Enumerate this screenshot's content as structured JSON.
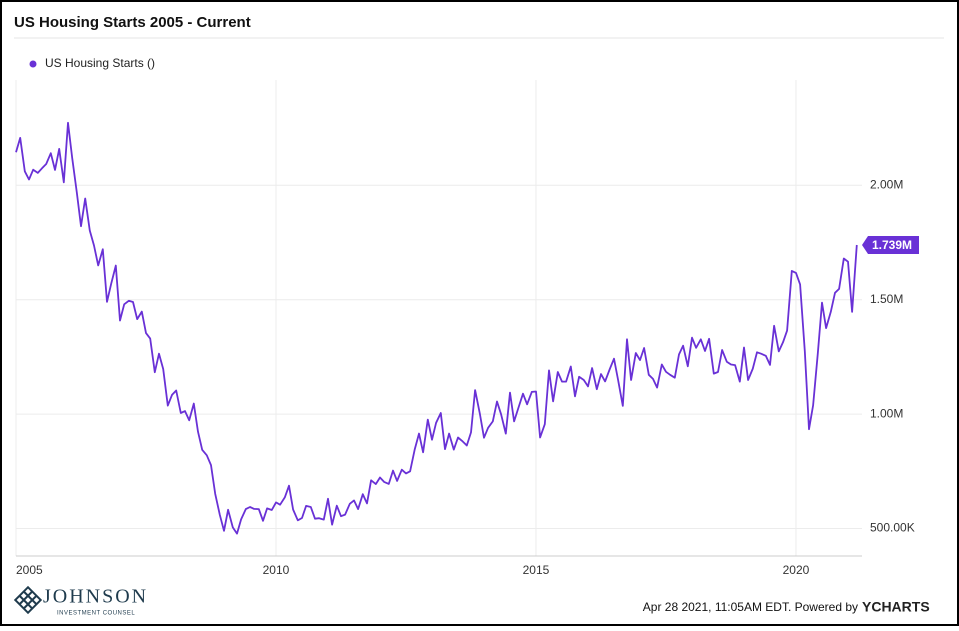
{
  "chart_data": {
    "type": "line",
    "title": "US Housing Starts 2005 - Current",
    "series": [
      {
        "name": "US Housing Starts ()",
        "color": "#6931d6",
        "values": [
          2144000,
          2207000,
          2061000,
          2025000,
          2068000,
          2054000,
          2074000,
          2093000,
          2140000,
          2067000,
          2159000,
          2013000,
          2273000,
          2119000,
          1969000,
          1821000,
          1942000,
          1802000,
          1737000,
          1650000,
          1720000,
          1491000,
          1570000,
          1649000,
          1409000,
          1480000,
          1495000,
          1490000,
          1415000,
          1448000,
          1354000,
          1330000,
          1183000,
          1264000,
          1197000,
          1037000,
          1084000,
          1103000,
          1005000,
          1013000,
          973000,
          1046000,
          923000,
          844000,
          820000,
          777000,
          652000,
          560000,
          490000,
          582000,
          505000,
          478000,
          540000,
          585000,
          594000,
          586000,
          585000,
          534000,
          588000,
          581000,
          614000,
          604000,
          636000,
          687000,
          583000,
          536000,
          546000,
          599000,
          594000,
          543000,
          545000,
          539000,
          630000,
          517000,
          600000,
          554000,
          561000,
          608000,
          623000,
          585000,
          650000,
          610000,
          711000,
          694000,
          723000,
          704000,
          695000,
          753000,
          708000,
          757000,
          741000,
          750000,
          847000,
          915000,
          833000,
          976000,
          888000,
          962000,
          1005000,
          847000,
          915000,
          845000,
          898000,
          883000,
          863000,
          920000,
          1105000,
          1003000,
          897000,
          940000,
          968000,
          1055000,
          999000,
          915000,
          1094000,
          968000,
          1033000,
          1089000,
          1043000,
          1097000,
          1099000,
          898000,
          956000,
          1191000,
          1056000,
          1184000,
          1142000,
          1142000,
          1208000,
          1078000,
          1163000,
          1149000,
          1121000,
          1201000,
          1109000,
          1175000,
          1143000,
          1197000,
          1242000,
          1149000,
          1036000,
          1327000,
          1149000,
          1267000,
          1236000,
          1289000,
          1172000,
          1154000,
          1116000,
          1217000,
          1185000,
          1172000,
          1159000,
          1261000,
          1299000,
          1209000,
          1334000,
          1290000,
          1327000,
          1276000,
          1329000,
          1177000,
          1184000,
          1280000,
          1229000,
          1217000,
          1214000,
          1142000,
          1291000,
          1149000,
          1199000,
          1270000,
          1264000,
          1255000,
          1215000,
          1386000,
          1274000,
          1314000,
          1365000,
          1626000,
          1617000,
          1567000,
          1276000,
          934000,
          1038000,
          1265000,
          1487000,
          1376000,
          1447000,
          1530000,
          1547000,
          1680000,
          1666000,
          1447000,
          1739000
        ]
      }
    ],
    "x": [
      2005,
      2005.08,
      2005.17,
      2005.25,
      2005.33,
      2005.42,
      2005.5,
      2005.58,
      2005.67,
      2005.75,
      2005.83,
      2005.92,
      2006,
      2006.08,
      2006.17,
      2006.25,
      2006.33,
      2006.42,
      2006.5,
      2006.58,
      2006.67,
      2006.75,
      2006.83,
      2006.92,
      2007,
      2007.08,
      2007.17,
      2007.25,
      2007.33,
      2007.42,
      2007.5,
      2007.58,
      2007.67,
      2007.75,
      2007.83,
      2007.92,
      2008,
      2008.08,
      2008.17,
      2008.25,
      2008.33,
      2008.42,
      2008.5,
      2008.58,
      2008.67,
      2008.75,
      2008.83,
      2008.92,
      2009,
      2009.08,
      2009.17,
      2009.25,
      2009.33,
      2009.42,
      2009.5,
      2009.58,
      2009.67,
      2009.75,
      2009.83,
      2009.92,
      2010,
      2010.08,
      2010.17,
      2010.25,
      2010.33,
      2010.42,
      2010.5,
      2010.58,
      2010.67,
      2010.75,
      2010.83,
      2010.92,
      2011,
      2011.08,
      2011.17,
      2011.25,
      2011.33,
      2011.42,
      2011.5,
      2011.58,
      2011.67,
      2011.75,
      2011.83,
      2011.92,
      2012,
      2012.08,
      2012.17,
      2012.25,
      2012.33,
      2012.42,
      2012.5,
      2012.58,
      2012.67,
      2012.75,
      2012.83,
      2012.92,
      2013,
      2013.08,
      2013.17,
      2013.25,
      2013.33,
      2013.42,
      2013.5,
      2013.58,
      2013.67,
      2013.75,
      2013.83,
      2013.92,
      2014,
      2014.08,
      2014.17,
      2014.25,
      2014.33,
      2014.42,
      2014.5,
      2014.58,
      2014.67,
      2014.75,
      2014.83,
      2014.92,
      2015,
      2015.08,
      2015.17,
      2015.25,
      2015.33,
      2015.42,
      2015.5,
      2015.58,
      2015.67,
      2015.75,
      2015.83,
      2015.92,
      2016,
      2016.08,
      2016.17,
      2016.25,
      2016.33,
      2016.42,
      2016.5,
      2016.58,
      2016.67,
      2016.75,
      2016.83,
      2016.92,
      2017,
      2017.08,
      2017.17,
      2017.25,
      2017.33,
      2017.42,
      2017.5,
      2017.58,
      2017.67,
      2017.75,
      2017.83,
      2017.92,
      2018,
      2018.08,
      2018.17,
      2018.25,
      2018.33,
      2018.42,
      2018.5,
      2018.58,
      2018.67,
      2018.75,
      2018.83,
      2018.92,
      2019,
      2019.08,
      2019.17,
      2019.25,
      2019.33,
      2019.42,
      2019.5,
      2019.58,
      2019.67,
      2019.75,
      2019.83,
      2019.92,
      2020,
      2020.08,
      2020.17,
      2020.25,
      2020.33,
      2020.42,
      2020.5,
      2020.58,
      2020.67,
      2020.75,
      2020.83,
      2020.92,
      2021,
      2021.08,
      2021.17
    ],
    "xlim": [
      2005,
      2021.27
    ],
    "xticks": [
      2005,
      2010,
      2015,
      2020
    ],
    "ylim": [
      380000,
      2460000
    ],
    "yticks": [
      {
        "value": 500000,
        "label": "500.00K"
      },
      {
        "value": 1000000,
        "label": "1.00M"
      },
      {
        "value": 1500000,
        "label": "1.50M"
      },
      {
        "value": 2000000,
        "label": "2.00M"
      }
    ],
    "grid": true,
    "legend": "top-left",
    "end_label": "1.739M"
  },
  "footer": {
    "logo_name": "JOHNSON",
    "logo_sub": "INVESTMENT COUNSEL",
    "timestamp": "Apr 28 2021, 11:05AM EDT. Powered by",
    "brand": "YCHARTS"
  }
}
